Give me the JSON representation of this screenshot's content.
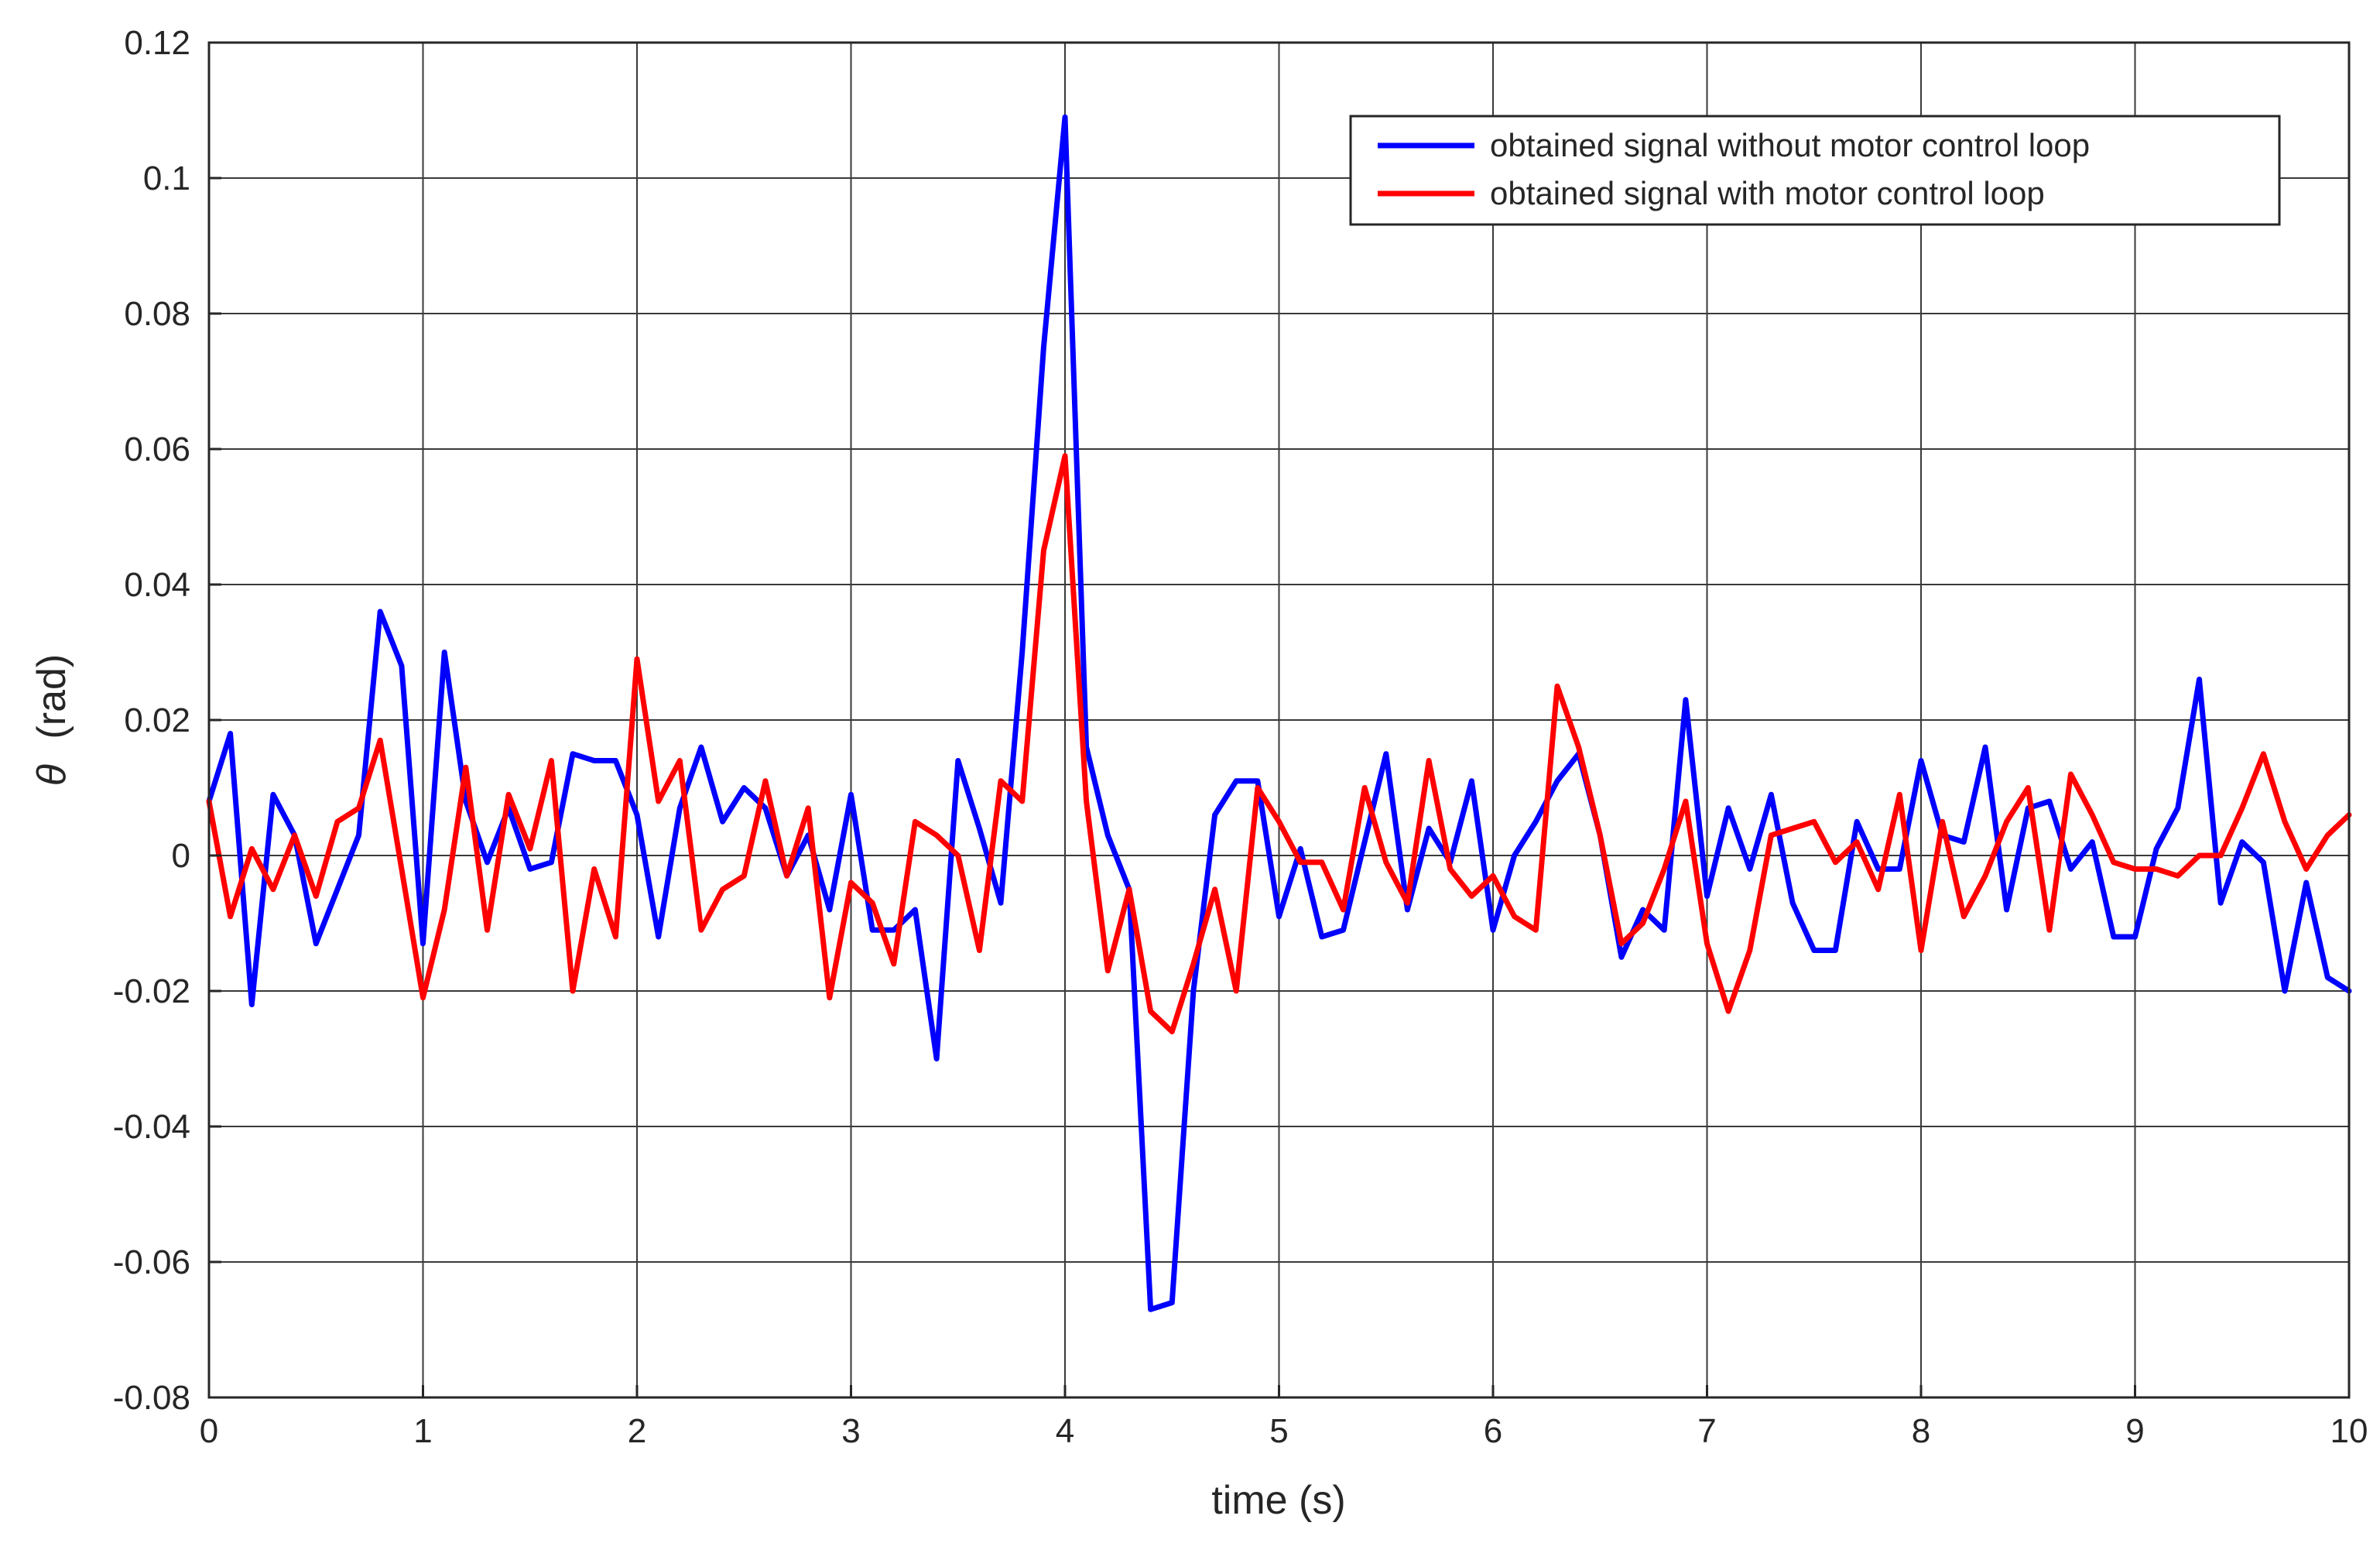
{
  "chart_data": {
    "type": "line",
    "xlabel": "time (s)",
    "ylabel_symbol": "θ",
    "ylabel_unit": "(rad)",
    "xlim": [
      0,
      10
    ],
    "ylim": [
      -0.08,
      0.12
    ],
    "x_ticks": [
      0,
      1,
      2,
      3,
      4,
      5,
      6,
      7,
      8,
      9,
      10
    ],
    "x_tick_labels": [
      "0",
      "1",
      "2",
      "3",
      "4",
      "5",
      "6",
      "7",
      "8",
      "9",
      "10"
    ],
    "y_ticks": [
      -0.08,
      -0.06,
      -0.04,
      -0.02,
      0,
      0.02,
      0.04,
      0.06,
      0.08,
      0.1,
      0.12
    ],
    "y_tick_labels": [
      "-0.08",
      "-0.06",
      "-0.04",
      "-0.02",
      "0",
      "0.02",
      "0.04",
      "0.06",
      "0.08",
      "0.1",
      "0.12"
    ],
    "grid": true,
    "legend_position": "top-right",
    "series": [
      {
        "name": "obtained signal without motor control loop",
        "color": "#0000ff",
        "points": [
          [
            0,
            0.008
          ],
          [
            0.1,
            0.018
          ],
          [
            0.2,
            -0.022
          ],
          [
            0.3,
            0.009
          ],
          [
            0.4,
            0.003
          ],
          [
            0.5,
            -0.013
          ],
          [
            0.6,
            -0.005
          ],
          [
            0.7,
            0.003
          ],
          [
            0.8,
            0.036
          ],
          [
            0.9,
            0.028
          ],
          [
            1.0,
            -0.013
          ],
          [
            1.1,
            0.03
          ],
          [
            1.2,
            0.008
          ],
          [
            1.3,
            -0.001
          ],
          [
            1.4,
            0.007
          ],
          [
            1.5,
            -0.002
          ],
          [
            1.6,
            -0.001
          ],
          [
            1.7,
            0.015
          ],
          [
            1.8,
            0.014
          ],
          [
            1.9,
            0.014
          ],
          [
            2.0,
            0.006
          ],
          [
            2.1,
            -0.012
          ],
          [
            2.2,
            0.007
          ],
          [
            2.3,
            0.016
          ],
          [
            2.4,
            0.005
          ],
          [
            2.5,
            0.01
          ],
          [
            2.6,
            0.007
          ],
          [
            2.7,
            -0.003
          ],
          [
            2.8,
            0.003
          ],
          [
            2.9,
            -0.008
          ],
          [
            3.0,
            0.009
          ],
          [
            3.1,
            -0.011
          ],
          [
            3.2,
            -0.011
          ],
          [
            3.3,
            -0.008
          ],
          [
            3.4,
            -0.03
          ],
          [
            3.5,
            0.014
          ],
          [
            3.6,
            0.004
          ],
          [
            3.7,
            -0.007
          ],
          [
            3.8,
            0.03
          ],
          [
            3.9,
            0.075
          ],
          [
            4.0,
            0.109
          ],
          [
            4.1,
            0.016
          ],
          [
            4.2,
            0.003
          ],
          [
            4.3,
            -0.005
          ],
          [
            4.4,
            -0.067
          ],
          [
            4.5,
            -0.066
          ],
          [
            4.6,
            -0.02
          ],
          [
            4.7,
            0.006
          ],
          [
            4.8,
            0.011
          ],
          [
            4.9,
            0.011
          ],
          [
            5.0,
            -0.009
          ],
          [
            5.1,
            0.001
          ],
          [
            5.2,
            -0.012
          ],
          [
            5.3,
            -0.011
          ],
          [
            5.4,
            0.002
          ],
          [
            5.5,
            0.015
          ],
          [
            5.6,
            -0.008
          ],
          [
            5.7,
            0.004
          ],
          [
            5.8,
            -0.001
          ],
          [
            5.9,
            0.011
          ],
          [
            6.0,
            -0.011
          ],
          [
            6.1,
            0.0
          ],
          [
            6.2,
            0.005
          ],
          [
            6.3,
            0.011
          ],
          [
            6.4,
            0.015
          ],
          [
            6.5,
            0.003
          ],
          [
            6.6,
            -0.015
          ],
          [
            6.7,
            -0.008
          ],
          [
            6.8,
            -0.011
          ],
          [
            6.9,
            0.023
          ],
          [
            7.0,
            -0.006
          ],
          [
            7.1,
            0.007
          ],
          [
            7.2,
            -0.002
          ],
          [
            7.3,
            0.009
          ],
          [
            7.4,
            -0.007
          ],
          [
            7.5,
            -0.014
          ],
          [
            7.6,
            -0.014
          ],
          [
            7.7,
            0.005
          ],
          [
            7.8,
            -0.002
          ],
          [
            7.9,
            -0.002
          ],
          [
            8.0,
            0.014
          ],
          [
            8.1,
            0.003
          ],
          [
            8.2,
            0.002
          ],
          [
            8.3,
            0.016
          ],
          [
            8.4,
            -0.008
          ],
          [
            8.5,
            0.007
          ],
          [
            8.6,
            0.008
          ],
          [
            8.7,
            -0.002
          ],
          [
            8.8,
            0.002
          ],
          [
            8.9,
            -0.012
          ],
          [
            9.0,
            -0.012
          ],
          [
            9.1,
            0.001
          ],
          [
            9.2,
            0.007
          ],
          [
            9.3,
            0.026
          ],
          [
            9.4,
            -0.007
          ],
          [
            9.5,
            0.002
          ],
          [
            9.6,
            -0.001
          ],
          [
            9.7,
            -0.02
          ],
          [
            9.8,
            -0.004
          ],
          [
            9.9,
            -0.018
          ],
          [
            10.0,
            -0.02
          ]
        ]
      },
      {
        "name": "obtained signal with motor control loop",
        "color": "#ff0000",
        "points": [
          [
            0,
            0.008
          ],
          [
            0.1,
            -0.009
          ],
          [
            0.2,
            0.001
          ],
          [
            0.3,
            -0.005
          ],
          [
            0.4,
            0.003
          ],
          [
            0.5,
            -0.006
          ],
          [
            0.6,
            0.005
          ],
          [
            0.7,
            0.007
          ],
          [
            0.8,
            0.017
          ],
          [
            0.9,
            -0.002
          ],
          [
            1.0,
            -0.021
          ],
          [
            1.1,
            -0.008
          ],
          [
            1.2,
            0.013
          ],
          [
            1.3,
            -0.011
          ],
          [
            1.4,
            0.009
          ],
          [
            1.5,
            0.001
          ],
          [
            1.6,
            0.014
          ],
          [
            1.7,
            -0.02
          ],
          [
            1.8,
            -0.002
          ],
          [
            1.9,
            -0.012
          ],
          [
            2.0,
            0.029
          ],
          [
            2.1,
            0.008
          ],
          [
            2.2,
            0.014
          ],
          [
            2.3,
            -0.011
          ],
          [
            2.4,
            -0.005
          ],
          [
            2.5,
            -0.003
          ],
          [
            2.6,
            0.011
          ],
          [
            2.7,
            -0.003
          ],
          [
            2.8,
            0.007
          ],
          [
            2.9,
            -0.021
          ],
          [
            3.0,
            -0.004
          ],
          [
            3.1,
            -0.007
          ],
          [
            3.2,
            -0.016
          ],
          [
            3.3,
            0.005
          ],
          [
            3.4,
            0.003
          ],
          [
            3.5,
            0.0
          ],
          [
            3.6,
            -0.014
          ],
          [
            3.7,
            0.011
          ],
          [
            3.8,
            0.008
          ],
          [
            3.9,
            0.045
          ],
          [
            4.0,
            0.059
          ],
          [
            4.1,
            0.008
          ],
          [
            4.2,
            -0.017
          ],
          [
            4.3,
            -0.005
          ],
          [
            4.4,
            -0.023
          ],
          [
            4.5,
            -0.026
          ],
          [
            4.6,
            -0.016
          ],
          [
            4.7,
            -0.005
          ],
          [
            4.8,
            -0.02
          ],
          [
            4.9,
            0.01
          ],
          [
            5.0,
            0.005
          ],
          [
            5.1,
            -0.001
          ],
          [
            5.2,
            -0.001
          ],
          [
            5.3,
            -0.008
          ],
          [
            5.4,
            0.01
          ],
          [
            5.5,
            -0.001
          ],
          [
            5.6,
            -0.007
          ],
          [
            5.7,
            0.014
          ],
          [
            5.8,
            -0.002
          ],
          [
            5.9,
            -0.006
          ],
          [
            6.0,
            -0.003
          ],
          [
            6.1,
            -0.009
          ],
          [
            6.2,
            -0.011
          ],
          [
            6.3,
            0.025
          ],
          [
            6.4,
            0.016
          ],
          [
            6.5,
            0.003
          ],
          [
            6.6,
            -0.013
          ],
          [
            6.7,
            -0.01
          ],
          [
            6.8,
            -0.002
          ],
          [
            6.9,
            0.008
          ],
          [
            7.0,
            -0.013
          ],
          [
            7.1,
            -0.023
          ],
          [
            7.2,
            -0.014
          ],
          [
            7.3,
            0.003
          ],
          [
            7.4,
            0.004
          ],
          [
            7.5,
            0.005
          ],
          [
            7.6,
            -0.001
          ],
          [
            7.7,
            0.002
          ],
          [
            7.8,
            -0.005
          ],
          [
            7.9,
            0.009
          ],
          [
            8.0,
            -0.014
          ],
          [
            8.1,
            0.005
          ],
          [
            8.2,
            -0.009
          ],
          [
            8.3,
            -0.003
          ],
          [
            8.4,
            0.005
          ],
          [
            8.5,
            0.01
          ],
          [
            8.6,
            -0.011
          ],
          [
            8.7,
            0.012
          ],
          [
            8.8,
            0.006
          ],
          [
            8.9,
            -0.001
          ],
          [
            9.0,
            -0.002
          ],
          [
            9.1,
            -0.002
          ],
          [
            9.2,
            -0.003
          ],
          [
            9.3,
            0.0
          ],
          [
            9.4,
            0.0
          ],
          [
            9.5,
            0.007
          ],
          [
            9.6,
            0.015
          ],
          [
            9.7,
            0.005
          ],
          [
            9.8,
            -0.002
          ],
          [
            9.9,
            0.003
          ],
          [
            10.0,
            0.006
          ]
        ]
      }
    ]
  }
}
